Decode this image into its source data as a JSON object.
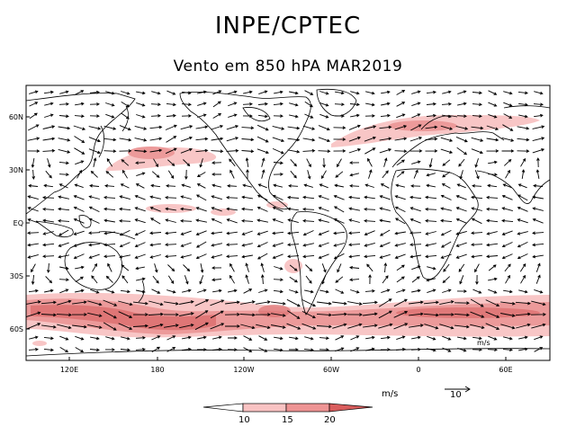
{
  "header": {
    "title": "INPE/CPTEC",
    "subtitle": "Vento em 850 hPA MAR2019"
  },
  "axes": {
    "lat_labels": [
      "60N",
      "30N",
      "EQ",
      "30S",
      "60S"
    ],
    "lon_labels": [
      "120E",
      "180",
      "120W",
      "60W",
      "0",
      "60E"
    ]
  },
  "inset_label": "m/s",
  "legend": {
    "units": "m/s",
    "ref_vector_label": "10",
    "colorbar": {
      "levels": [
        "10",
        "15",
        "20"
      ],
      "colors": [
        "#ffffff",
        "#f9c3c3",
        "#ee9494",
        "#d95d5d"
      ]
    }
  },
  "shading_colors": {
    "light": "#f8c6c6",
    "medium": "#ec9a9a",
    "dark": "#dd7070"
  }
}
